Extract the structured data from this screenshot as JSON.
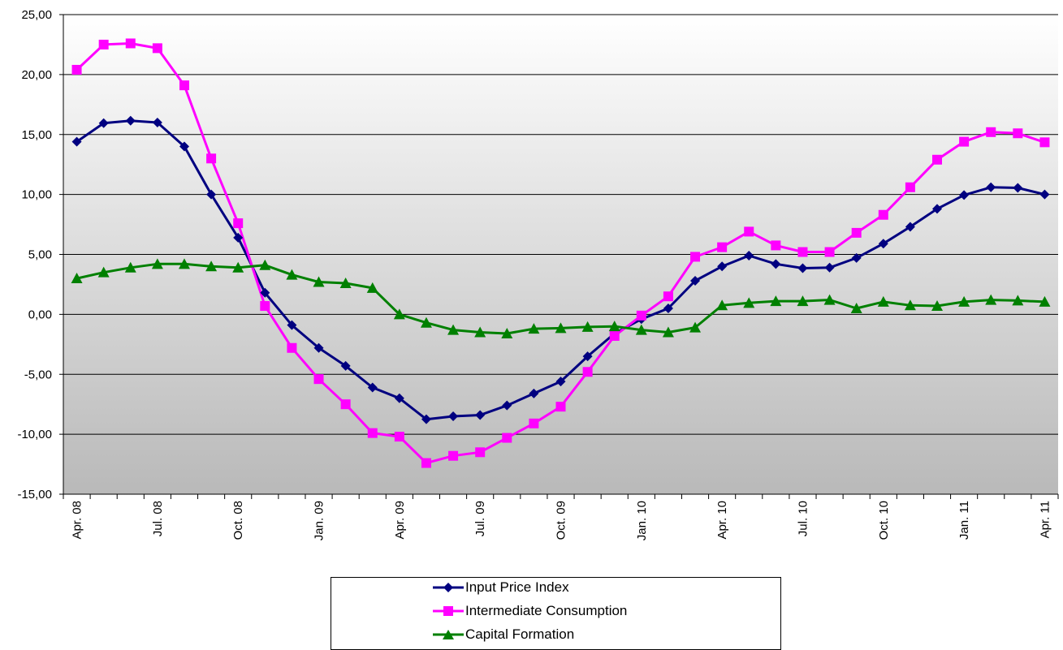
{
  "chart_data": {
    "type": "line",
    "x_tick_labels": [
      "Apr. 08",
      "Jul. 08",
      "Oct. 08",
      "Jan. 09",
      "Apr. 09",
      "Jul. 09",
      "Oct. 09",
      "Jan. 10",
      "Apr. 10",
      "Jul. 10",
      "Oct. 10",
      "Jan. 11",
      "Apr. 11"
    ],
    "x": [
      "2008-04",
      "2008-05",
      "2008-06",
      "2008-07",
      "2008-08",
      "2008-09",
      "2008-10",
      "2008-11",
      "2008-12",
      "2009-01",
      "2009-02",
      "2009-03",
      "2009-04",
      "2009-05",
      "2009-06",
      "2009-07",
      "2009-08",
      "2009-09",
      "2009-10",
      "2009-11",
      "2009-12",
      "2010-01",
      "2010-02",
      "2010-03",
      "2010-04",
      "2010-05",
      "2010-06",
      "2010-07",
      "2010-08",
      "2010-09",
      "2010-10",
      "2010-11",
      "2010-12",
      "2011-01",
      "2011-02",
      "2011-03",
      "2011-04"
    ],
    "y_tick_labels": [
      "25,00",
      "20,00",
      "15,00",
      "10,00",
      "5,00",
      "0,00",
      "-5,00",
      "-10,00",
      "-15,00"
    ],
    "ylim": [
      -15,
      25
    ],
    "ytick_step": 5,
    "grid": "horizontal",
    "legend_position": "bottom",
    "series": [
      {
        "name": "Input Price Index",
        "color": "#000080",
        "marker": "diamond",
        "values": [
          14.4,
          15.95,
          16.15,
          16.0,
          14.0,
          10.0,
          6.4,
          1.8,
          -0.9,
          -2.8,
          -4.3,
          -6.1,
          -7.0,
          -8.75,
          -8.5,
          -8.4,
          -7.6,
          -6.6,
          -5.6,
          -3.5,
          -1.6,
          -0.4,
          0.5,
          2.8,
          4.0,
          4.9,
          4.2,
          3.85,
          3.9,
          4.7,
          5.9,
          7.3,
          8.8,
          9.95,
          10.6,
          10.55,
          10.0
        ]
      },
      {
        "name": "Intermediate Consumption",
        "color": "#ff00ff",
        "marker": "square",
        "values": [
          20.4,
          22.5,
          22.6,
          22.2,
          19.1,
          13.0,
          7.6,
          0.7,
          -2.8,
          -5.4,
          -7.5,
          -9.9,
          -10.2,
          -12.4,
          -11.8,
          -11.5,
          -10.3,
          -9.1,
          -7.7,
          -4.8,
          -1.8,
          -0.1,
          1.5,
          4.8,
          5.6,
          6.9,
          5.75,
          5.2,
          5.2,
          6.8,
          8.3,
          10.6,
          12.9,
          14.4,
          15.2,
          15.1,
          14.35
        ]
      },
      {
        "name": "Capital Formation",
        "color": "#008000",
        "marker": "triangle",
        "values": [
          3.0,
          3.5,
          3.9,
          4.2,
          4.2,
          4.0,
          3.9,
          4.1,
          3.3,
          2.7,
          2.6,
          2.2,
          0.0,
          -0.7,
          -1.3,
          -1.5,
          -1.6,
          -1.2,
          -1.15,
          -1.05,
          -1.0,
          -1.3,
          -1.5,
          -1.1,
          0.75,
          0.95,
          1.1,
          1.1,
          1.2,
          0.5,
          1.05,
          0.75,
          0.7,
          1.05,
          1.2,
          1.15,
          1.05
        ]
      }
    ]
  }
}
